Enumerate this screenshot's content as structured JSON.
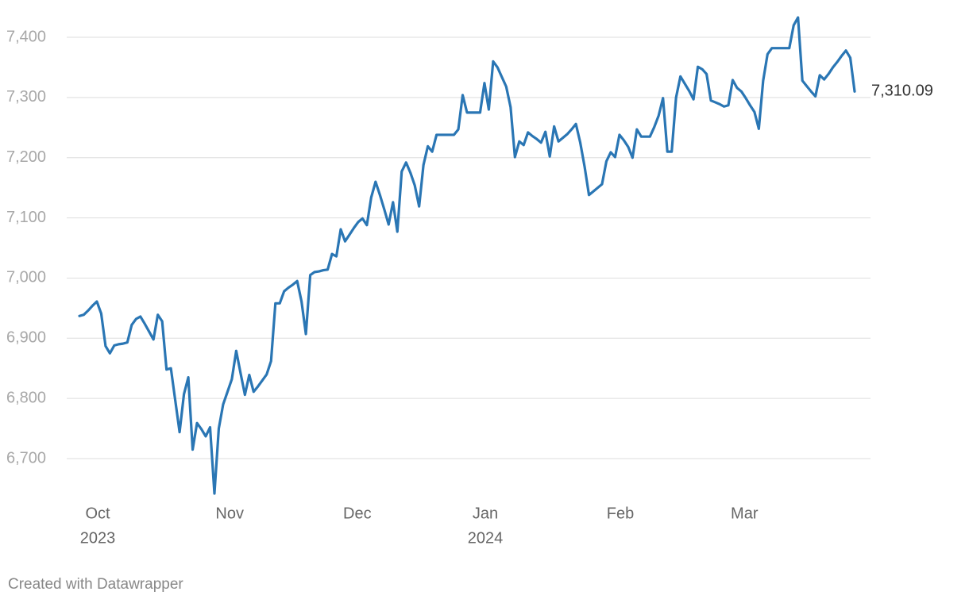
{
  "chart_data": {
    "type": "line",
    "color": "#2a76b4",
    "grid": true,
    "ylim": [
      6640,
      7440
    ],
    "yticks": [
      {
        "value": 6700,
        "label": "6,700"
      },
      {
        "value": 6800,
        "label": "6,800"
      },
      {
        "value": 6900,
        "label": "6,900"
      },
      {
        "value": 7000,
        "label": "7,000"
      },
      {
        "value": 7100,
        "label": "7,100"
      },
      {
        "value": 7200,
        "label": "7,200"
      },
      {
        "value": 7300,
        "label": "7,300"
      },
      {
        "value": 7400,
        "label": "7,400"
      }
    ],
    "xticks": [
      {
        "value": 4.2,
        "label": "Oct",
        "year": "2023"
      },
      {
        "value": 34.5,
        "label": "Nov"
      },
      {
        "value": 63.8,
        "label": "Dec"
      },
      {
        "value": 93.2,
        "label": "Jan",
        "year": "2024"
      },
      {
        "value": 124.2,
        "label": "Feb"
      },
      {
        "value": 152.7,
        "label": "Mar"
      }
    ],
    "values": [
      6937,
      6939,
      6946,
      6954,
      6961,
      6941,
      6887,
      6875,
      6888,
      6890,
      6891,
      6893,
      6922,
      6932,
      6936,
      6924,
      6911,
      6898,
      6939,
      6928,
      6848,
      6850,
      6797,
      6744,
      6807,
      6835,
      6715,
      6759,
      6749,
      6737,
      6752,
      6642,
      6750,
      6790,
      6811,
      6832,
      6879,
      6842,
      6806,
      6839,
      6811,
      6820,
      6830,
      6840,
      6862,
      6958,
      6958,
      6978,
      6984,
      6989,
      6995,
      6961,
      6907,
      7005,
      7010,
      7011,
      7013,
      7014,
      7040,
      7036,
      7081,
      7061,
      7072,
      7083,
      7093,
      7099,
      7088,
      7134,
      7160,
      7138,
      7114,
      7089,
      7126,
      7077,
      7177,
      7192,
      7175,
      7154,
      7119,
      7188,
      7219,
      7210,
      7238,
      7238,
      7238,
      7238,
      7238,
      7247,
      7304,
      7275,
      7275,
      7275,
      7275,
      7324,
      7280,
      7360,
      7350,
      7334,
      7318,
      7284,
      7201,
      7227,
      7221,
      7242,
      7236,
      7231,
      7225,
      7243,
      7202,
      7252,
      7227,
      7233,
      7239,
      7247,
      7256,
      7225,
      7185,
      7138,
      7144,
      7150,
      7156,
      7194,
      7209,
      7201,
      7238,
      7229,
      7218,
      7200,
      7247,
      7235,
      7235,
      7235,
      7251,
      7270,
      7299,
      7210,
      7210,
      7300,
      7335,
      7323,
      7311,
      7297,
      7351,
      7347,
      7339,
      7295,
      7292,
      7289,
      7285,
      7287,
      7329,
      7316,
      7310,
      7299,
      7287,
      7276,
      7248,
      7328,
      7372,
      7382,
      7382,
      7382,
      7382,
      7382,
      7420,
      7433,
      7328,
      7319,
      7310,
      7302,
      7337,
      7330,
      7339,
      7350,
      7359,
      7369,
      7378,
      7366,
      7310.09
    ],
    "value_labels": [
      null,
      null,
      null,
      null,
      null,
      null,
      null,
      null,
      null,
      null,
      null,
      null,
      null,
      null,
      null,
      null,
      null,
      null,
      null,
      null,
      null,
      null,
      null,
      null,
      null,
      null,
      null,
      null,
      null,
      null,
      null,
      null,
      null,
      null,
      null,
      null,
      null,
      null,
      null,
      null,
      null,
      null,
      null,
      null,
      null,
      null,
      null,
      null,
      null,
      null,
      null,
      null,
      null,
      null,
      null,
      null,
      null,
      null,
      null,
      null,
      null,
      null,
      null,
      null,
      null,
      null,
      null,
      null,
      null,
      null,
      null,
      null,
      null,
      null,
      null,
      null,
      null,
      null,
      null,
      null,
      null,
      null,
      null,
      null,
      null,
      null,
      null,
      null,
      null,
      null,
      null,
      null,
      null,
      null,
      null,
      null,
      null,
      null,
      null,
      null,
      null,
      null,
      null,
      null,
      null,
      null,
      null,
      null,
      null,
      null,
      null,
      null,
      null,
      null,
      null,
      null,
      null,
      null,
      null,
      null,
      null,
      null,
      null,
      null,
      null,
      null,
      null,
      null,
      null,
      null,
      null,
      null,
      null,
      null,
      null,
      null,
      null,
      null,
      null,
      null,
      null,
      null,
      null,
      null,
      null,
      null,
      null,
      null,
      null,
      null,
      null,
      null,
      null,
      null,
      null,
      null,
      null,
      null,
      null,
      null,
      null,
      null,
      null,
      null,
      null,
      null,
      null,
      null,
      null,
      null,
      null,
      null,
      null,
      null,
      null,
      null,
      null,
      null,
      "7,310.09"
    ],
    "footer": "Created with Datawrapper"
  }
}
